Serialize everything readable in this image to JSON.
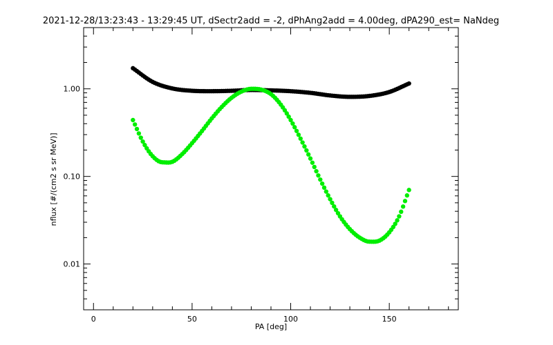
{
  "chart_data": {
    "type": "scatter",
    "title": "2021-12-28/13:23:43 - 13:29:45 UT, dSectr2add = -2, dPhAng2add = 4.00deg, dPA290_est=   NaNdeg",
    "xlabel": "PA [deg]",
    "ylabel": "nflux [#/(cm2 s sr MeV)]",
    "xlim": [
      -5,
      185
    ],
    "ylim": [
      0.003,
      5
    ],
    "y_scale": "log",
    "grid": false,
    "x_ticks": [
      {
        "value": 0,
        "label": "0"
      },
      {
        "value": 50,
        "label": "50"
      },
      {
        "value": 100,
        "label": "100"
      },
      {
        "value": 150,
        "label": "150"
      }
    ],
    "y_ticks": [
      {
        "value": 0.01,
        "label": "0.01"
      },
      {
        "value": 0.1,
        "label": "0.10"
      },
      {
        "value": 1.0,
        "label": "1.00"
      }
    ],
    "series": [
      {
        "color": "#000000",
        "x": [
          20,
          30,
          40,
          50,
          60,
          70,
          80,
          90,
          100,
          110,
          120,
          130,
          140,
          150,
          160
        ],
        "y": [
          1.72,
          1.2,
          1.01,
          0.95,
          0.94,
          0.95,
          0.97,
          0.96,
          0.94,
          0.9,
          0.84,
          0.81,
          0.83,
          0.92,
          1.15
        ]
      },
      {
        "color": "#00ee00",
        "x": [
          20,
          25,
          30,
          35,
          40,
          45,
          50,
          55,
          60,
          65,
          70,
          75,
          80,
          85,
          90,
          95,
          100,
          105,
          110,
          115,
          120,
          125,
          130,
          135,
          140,
          145,
          150,
          155,
          160
        ],
        "y": [
          0.44,
          0.25,
          0.17,
          0.145,
          0.147,
          0.18,
          0.24,
          0.33,
          0.46,
          0.62,
          0.79,
          0.93,
          1.0,
          0.98,
          0.87,
          0.66,
          0.44,
          0.27,
          0.16,
          0.092,
          0.055,
          0.035,
          0.025,
          0.02,
          0.018,
          0.0185,
          0.023,
          0.035,
          0.07
        ]
      }
    ]
  }
}
